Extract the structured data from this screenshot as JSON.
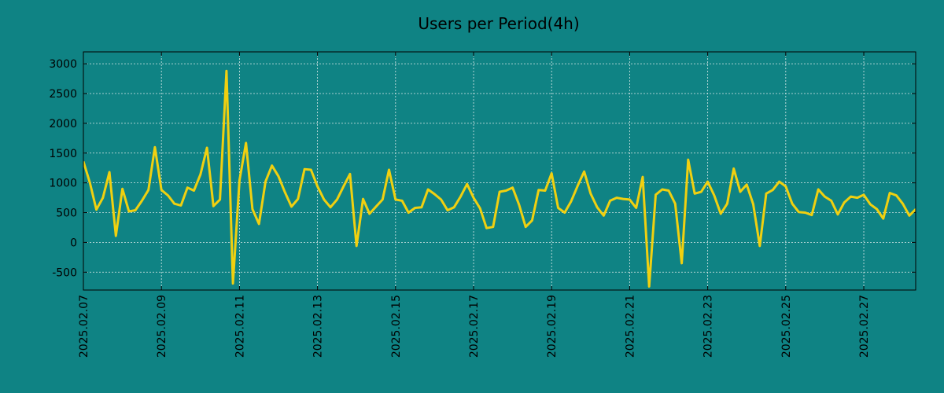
{
  "chart_data": {
    "type": "line",
    "title": "Users per Period(4h)",
    "xlabel": "",
    "ylabel": "",
    "grid": true,
    "ylim": [
      -800,
      3200
    ],
    "yticks": [
      -500,
      0,
      500,
      1000,
      1500,
      2000,
      2500,
      3000
    ],
    "xticks": [
      {
        "label": "2025.02.07",
        "day": 0
      },
      {
        "label": "2025.02.09",
        "day": 2
      },
      {
        "label": "2025.02.11",
        "day": 4
      },
      {
        "label": "2025.02.13",
        "day": 6
      },
      {
        "label": "2025.02.15",
        "day": 8
      },
      {
        "label": "2025.02.17",
        "day": 10
      },
      {
        "label": "2025.02.19",
        "day": 12
      },
      {
        "label": "2025.02.21",
        "day": 14
      },
      {
        "label": "2025.02.23",
        "day": 16
      },
      {
        "label": "2025.02.25",
        "day": 18
      },
      {
        "label": "2025.02.27",
        "day": 20
      }
    ],
    "xlim_days": [
      0,
      21.33
    ],
    "series": [
      {
        "name": "Users",
        "color": "#f0d010",
        "values": [
          1360,
          1000,
          550,
          750,
          1180,
          110,
          900,
          520,
          540,
          700,
          880,
          1600,
          880,
          790,
          650,
          620,
          920,
          870,
          1140,
          1590,
          610,
          720,
          2880,
          -690,
          1040,
          1670,
          560,
          310,
          1020,
          1290,
          1110,
          840,
          600,
          730,
          1230,
          1220,
          940,
          720,
          590,
          720,
          940,
          1150,
          -60,
          730,
          480,
          600,
          720,
          1220,
          720,
          700,
          500,
          580,
          590,
          890,
          810,
          720,
          540,
          590,
          770,
          980,
          750,
          570,
          240,
          260,
          850,
          870,
          920,
          630,
          260,
          370,
          880,
          870,
          1160,
          580,
          500,
          690,
          950,
          1190,
          820,
          590,
          450,
          700,
          750,
          730,
          720,
          580,
          1100,
          -740,
          800,
          890,
          870,
          650,
          -350,
          1390,
          820,
          850,
          1020,
          790,
          480,
          650,
          1240,
          850,
          970,
          640,
          -60,
          820,
          880,
          1020,
          940,
          650,
          510,
          500,
          460,
          890,
          770,
          700,
          470,
          670,
          770,
          750,
          800,
          640,
          560,
          400,
          830,
          790,
          650,
          450,
          560
        ]
      }
    ]
  },
  "colors": {
    "background": "#0f8384",
    "line": "#f0d010",
    "grid": "#d9e8e8",
    "axis": "#000000"
  }
}
